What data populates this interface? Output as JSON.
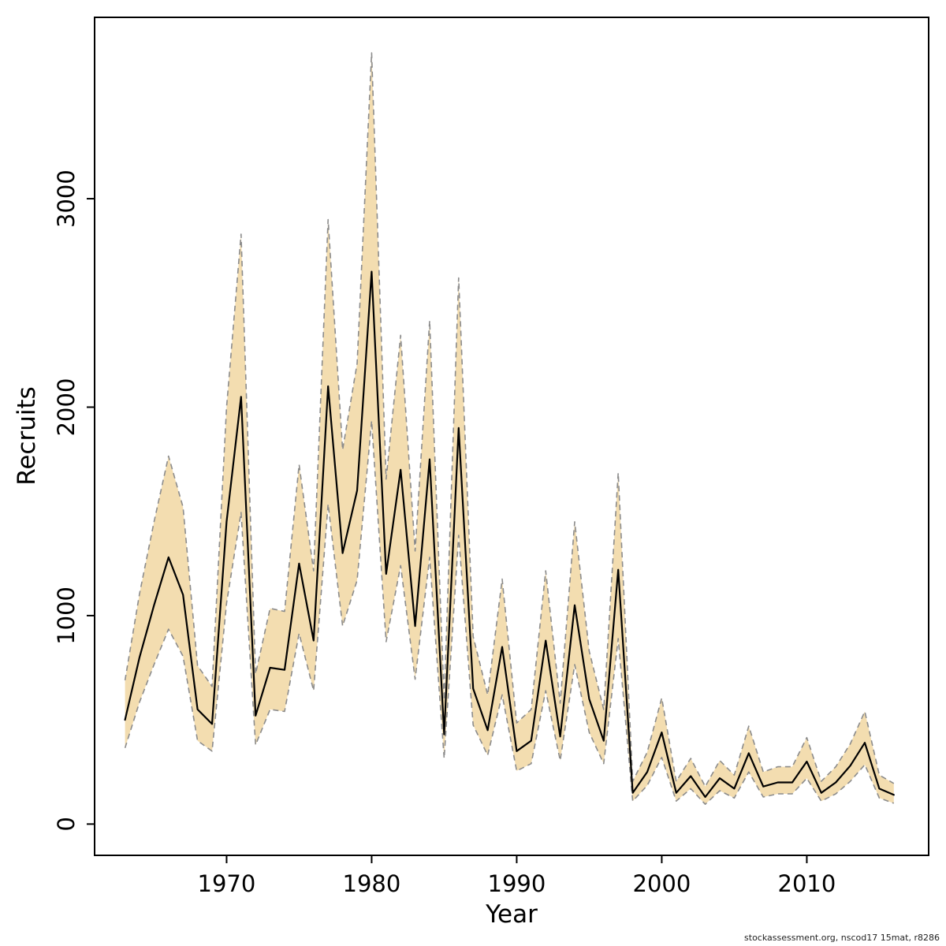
{
  "watermark": "stockassessment.org, nscod17 15mat, r8286",
  "chart_data": {
    "type": "line",
    "title": "",
    "xlabel": "Year",
    "ylabel": "Recruits",
    "xlim": [
      1960.9,
      2018.4
    ],
    "ylim": [
      -150,
      3870
    ],
    "xticks": [
      1970,
      1980,
      1990,
      2000,
      2010
    ],
    "yticks": [
      0,
      1000,
      2000,
      3000
    ],
    "grid": false,
    "legend": "none",
    "band_color": "#f3ddb0",
    "band_edge_color": "#8c8c8c",
    "line_color": "#000000",
    "years": [
      1963,
      1964,
      1965,
      1966,
      1967,
      1968,
      1969,
      1970,
      1971,
      1972,
      1973,
      1974,
      1975,
      1976,
      1977,
      1978,
      1979,
      1980,
      1981,
      1982,
      1983,
      1984,
      1985,
      1986,
      1987,
      1988,
      1989,
      1990,
      1991,
      1992,
      1993,
      1994,
      1995,
      1996,
      1997,
      1998,
      1999,
      2000,
      2001,
      2002,
      2003,
      2004,
      2005,
      2006,
      2007,
      2008,
      2009,
      2010,
      2011,
      2012,
      2013,
      2014,
      2015,
      2016
    ],
    "series": [
      {
        "name": "recruits_median",
        "values": [
          500,
          800,
          1050,
          1280,
          1100,
          550,
          480,
          1450,
          2050,
          520,
          750,
          740,
          1250,
          880,
          2100,
          1300,
          1600,
          2650,
          1200,
          1700,
          950,
          1750,
          430,
          1900,
          650,
          450,
          850,
          350,
          400,
          880,
          420,
          1050,
          600,
          400,
          1220,
          150,
          250,
          440,
          150,
          230,
          130,
          220,
          170,
          340,
          180,
          200,
          200,
          300,
          150,
          200,
          280,
          390,
          170,
          140
        ]
      },
      {
        "name": "ci_lower",
        "values": [
          365,
          585,
          765,
          935,
          805,
          400,
          350,
          1060,
          1495,
          380,
          550,
          540,
          915,
          640,
          1535,
          950,
          1170,
          1935,
          875,
          1240,
          695,
          1280,
          315,
          1385,
          475,
          330,
          620,
          255,
          290,
          640,
          305,
          765,
          440,
          290,
          890,
          110,
          185,
          320,
          110,
          170,
          95,
          160,
          125,
          250,
          130,
          145,
          145,
          220,
          110,
          145,
          205,
          285,
          125,
          100
        ]
      },
      {
        "name": "ci_upper",
        "values": [
          690,
          1105,
          1450,
          1765,
          1520,
          760,
          660,
          2000,
          2830,
          720,
          1035,
          1020,
          1725,
          1215,
          2900,
          1795,
          2210,
          3700,
          1655,
          2345,
          1310,
          2415,
          595,
          2620,
          900,
          620,
          1175,
          485,
          550,
          1215,
          580,
          1450,
          830,
          550,
          1685,
          205,
          345,
          605,
          205,
          315,
          180,
          305,
          235,
          470,
          250,
          275,
          275,
          415,
          205,
          275,
          385,
          540,
          235,
          195
        ]
      }
    ]
  }
}
